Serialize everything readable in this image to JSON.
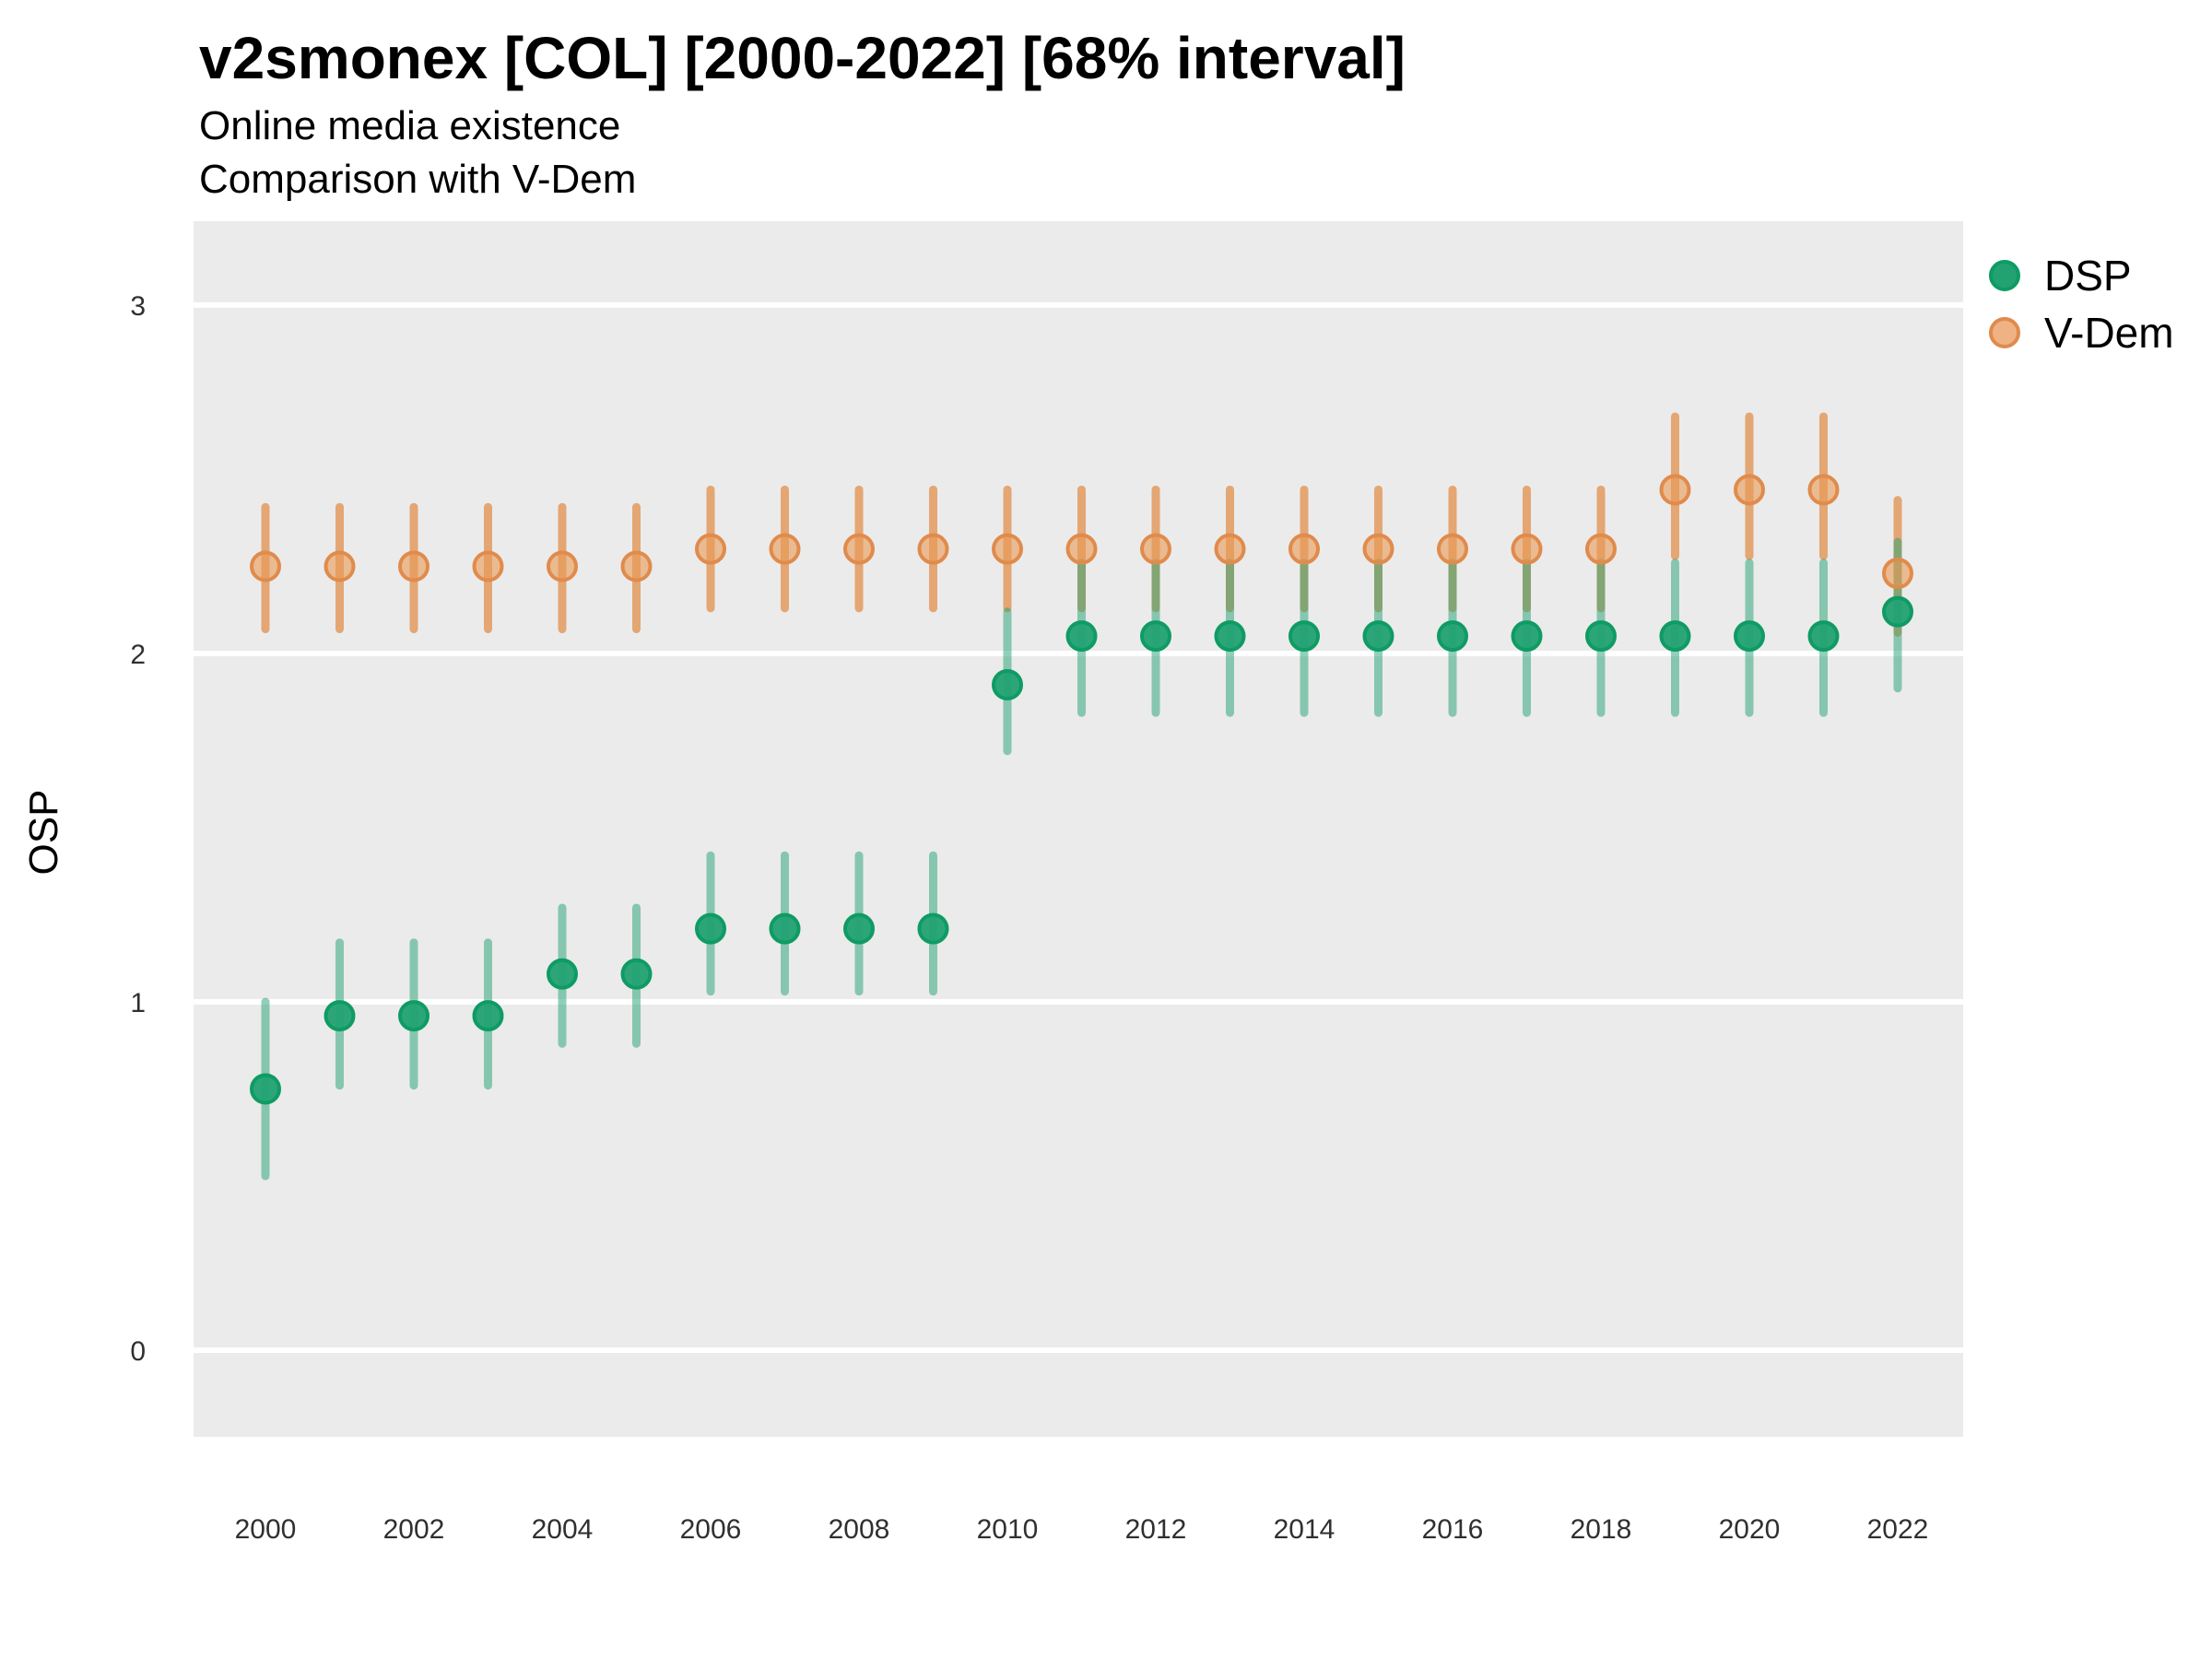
{
  "header": {
    "title": "v2smonex [COL] [2000-2022] [68% interval]",
    "subtitle_line1": "Online media existence",
    "subtitle_line2": "Comparison with V-Dem"
  },
  "y_axis_title": "OSP",
  "legend": {
    "items": [
      {
        "label": "DSP",
        "swatch_fill": "#22a273",
        "swatch_stroke": "#0f9b64"
      },
      {
        "label": "V-Dem",
        "swatch_fill": "#efb285",
        "swatch_stroke": "#e08b4c"
      }
    ]
  },
  "colors": {
    "panel_background": "#ebebeb",
    "gridline": "#ffffff",
    "tick_label": "#303030",
    "dsp_marker_fill": "#22a273",
    "dsp_marker_stroke": "#0f9b64",
    "dsp_interval_line": "rgba(34,162,115,0.5)",
    "vdem_marker_fill": "rgba(234,154,85,0.6)",
    "vdem_marker_stroke": "#e08b4c",
    "vdem_interval_line": "rgba(224,124,42,0.62)"
  },
  "chart_data": {
    "type": "scatter",
    "title": "v2smonex [COL] [2000-2022] [68% interval]",
    "subtitle": [
      "Online media existence",
      "Comparison with V-Dem"
    ],
    "interval_note": "68% interval error bars",
    "x": [
      2000,
      2001,
      2002,
      2003,
      2004,
      2005,
      2006,
      2007,
      2008,
      2009,
      2010,
      2011,
      2012,
      2013,
      2014,
      2015,
      2016,
      2017,
      2018,
      2019,
      2020,
      2021,
      2022
    ],
    "series": [
      {
        "name": "DSP",
        "values": [
          0.75,
          0.96,
          0.96,
          0.96,
          1.08,
          1.08,
          1.21,
          1.21,
          1.21,
          1.21,
          1.91,
          2.05,
          2.05,
          2.05,
          2.05,
          2.05,
          2.05,
          2.05,
          2.05,
          2.05,
          2.05,
          2.05,
          2.12
        ],
        "lower": [
          0.5,
          0.76,
          0.76,
          0.76,
          0.88,
          0.88,
          1.03,
          1.03,
          1.03,
          1.03,
          1.72,
          1.83,
          1.83,
          1.83,
          1.83,
          1.83,
          1.83,
          1.83,
          1.83,
          1.83,
          1.83,
          1.83,
          1.9
        ],
        "upper": [
          1.0,
          1.17,
          1.17,
          1.17,
          1.27,
          1.27,
          1.42,
          1.42,
          1.42,
          1.42,
          2.12,
          2.26,
          2.26,
          2.26,
          2.26,
          2.26,
          2.26,
          2.26,
          2.26,
          2.26,
          2.26,
          2.26,
          2.32
        ]
      },
      {
        "name": "V-Dem",
        "values": [
          2.25,
          2.25,
          2.25,
          2.25,
          2.25,
          2.25,
          2.3,
          2.3,
          2.3,
          2.3,
          2.3,
          2.3,
          2.3,
          2.3,
          2.3,
          2.3,
          2.3,
          2.3,
          2.3,
          2.47,
          2.47,
          2.47,
          2.23
        ],
        "lower": [
          2.07,
          2.07,
          2.07,
          2.07,
          2.07,
          2.07,
          2.13,
          2.13,
          2.13,
          2.13,
          2.13,
          2.13,
          2.13,
          2.13,
          2.13,
          2.13,
          2.13,
          2.13,
          2.13,
          2.28,
          2.28,
          2.28,
          2.06
        ],
        "upper": [
          2.42,
          2.42,
          2.42,
          2.42,
          2.42,
          2.42,
          2.47,
          2.47,
          2.47,
          2.47,
          2.47,
          2.47,
          2.47,
          2.47,
          2.47,
          2.47,
          2.47,
          2.47,
          2.47,
          2.68,
          2.68,
          2.68,
          2.44
        ]
      }
    ],
    "xlabel": "",
    "ylabel": "OSP",
    "ylim": [
      -0.3,
      3.3
    ],
    "yticks": [
      0,
      1,
      2,
      3
    ],
    "xticks": [
      2000,
      2002,
      2004,
      2006,
      2008,
      2010,
      2012,
      2014,
      2016,
      2018,
      2020,
      2022
    ],
    "grid": "horizontal major gridlines only, white on gray panel",
    "legend_position": "right of panel, top"
  }
}
